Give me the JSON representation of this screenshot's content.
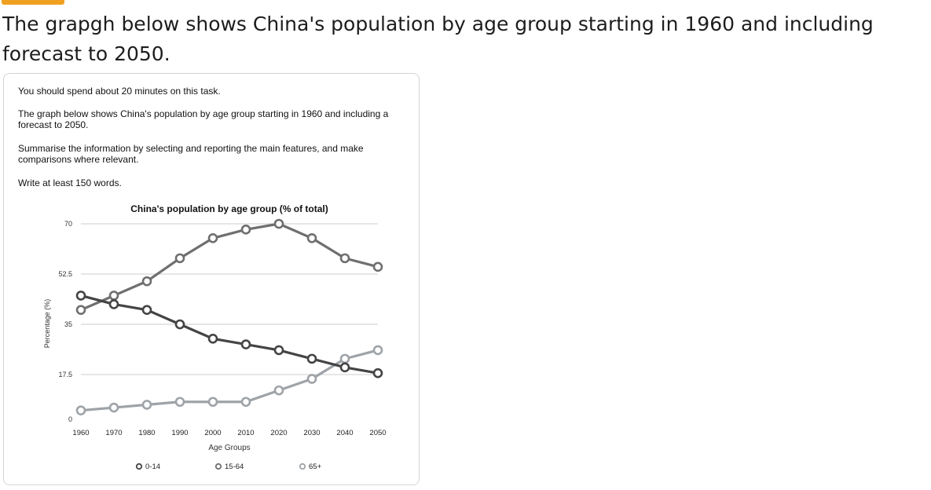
{
  "heading": "The grapgh below shows China's population by age group starting in 1960 and including forecast to 2050.",
  "task": {
    "time": "You should spend about 20 minutes on this task.",
    "graph_desc": "The graph below shows China's population by age group starting in 1960 and including a forecast to 2050.",
    "summarise": "Summarise the information by selecting and reporting the main features, and make comparisons where relevant.",
    "words": "Write at least 150 words."
  },
  "colors": {
    "tag": "#f0a020",
    "gridline": "#cccccc"
  },
  "chart_data": {
    "type": "line",
    "title": "China's population by age group (% of total)",
    "xlabel": "Age Groups",
    "ylabel": "Percentage (%)",
    "x": [
      1960,
      1970,
      1980,
      1990,
      2000,
      2010,
      2020,
      2030,
      2040,
      2050
    ],
    "y_ticks": [
      "0",
      "17.5",
      "35",
      "52.5",
      "70"
    ],
    "ylim": [
      0,
      70
    ],
    "grid": true,
    "legend_position": "bottom",
    "series": [
      {
        "name": "0-14",
        "color": "#444444",
        "values": [
          45,
          42,
          40,
          35,
          30,
          28,
          26,
          23,
          20,
          18
        ]
      },
      {
        "name": "15-64",
        "color": "#6f6f6f",
        "values": [
          40,
          45,
          50,
          58,
          65,
          68,
          70,
          65,
          58,
          55
        ]
      },
      {
        "name": "65+",
        "color": "#9ea3a8",
        "values": [
          5,
          6,
          7,
          8,
          8,
          8,
          12,
          16,
          23,
          26
        ]
      }
    ]
  }
}
